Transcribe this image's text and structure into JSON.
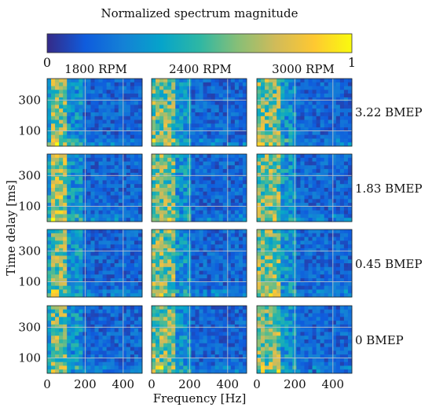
{
  "chart_data": {
    "type": "heatmap",
    "colorbar": {
      "title": "Normalized spectrum magnitude",
      "min_label": "0",
      "max_label": "1",
      "range": [
        0,
        1
      ],
      "colormap": "parula"
    },
    "columns": [
      "1800 RPM",
      "2400 RPM",
      "3000 RPM"
    ],
    "rows": [
      "3.22 BMEP",
      "1.83 BMEP",
      "0.45 BMEP",
      "0 BMEP"
    ],
    "xlabel": "Frequency [Hz]",
    "ylabel": "Time delay [ms]",
    "xticks": [
      "0",
      "200",
      "400"
    ],
    "yticks": [
      "300",
      "100"
    ],
    "xlim": [
      0,
      500
    ],
    "ylim": [
      0,
      440
    ],
    "grid": true,
    "dominant_band_hz": {
      "1800 RPM": [
        20,
        110
      ],
      "2400 RPM": [
        10,
        130
      ],
      "3000 RPM": [
        10,
        130
      ]
    },
    "colormap_colors": [
      "#352a87",
      "#0f5cdd",
      "#1481d6",
      "#06a4ca",
      "#2eb7a4",
      "#87bf77",
      "#d1bb59",
      "#fec832",
      "#f9fb0e"
    ]
  }
}
